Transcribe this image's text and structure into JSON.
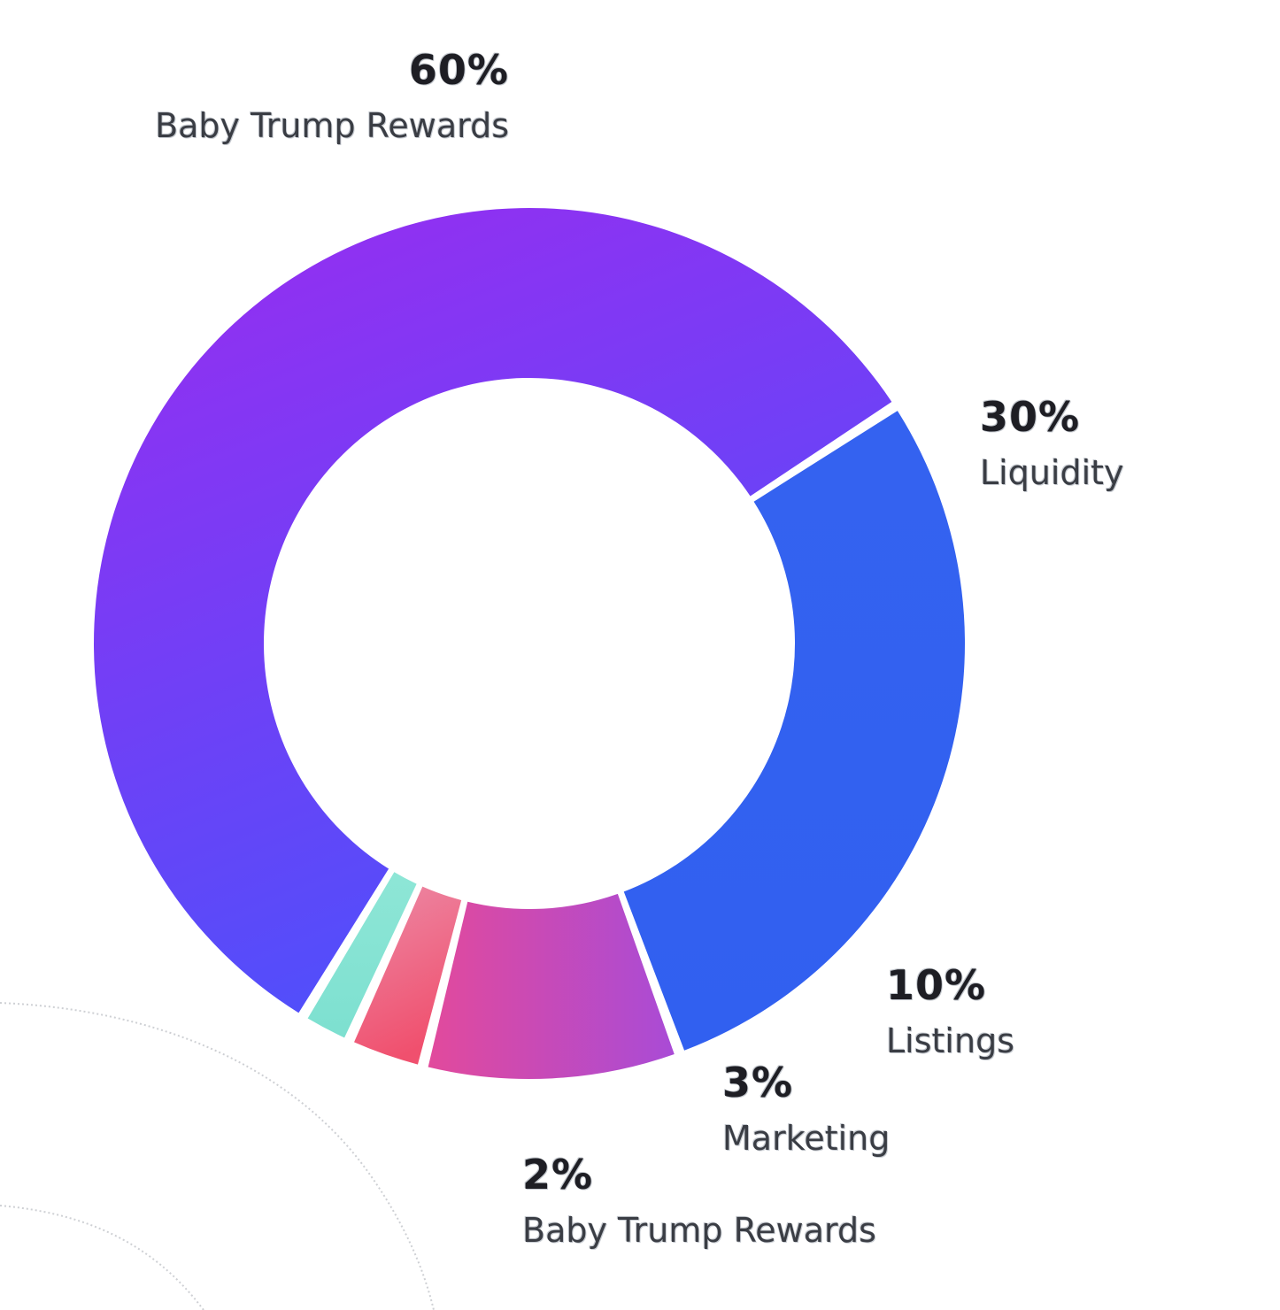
{
  "chart_data": {
    "type": "pie",
    "variant": "donut",
    "slices": [
      {
        "label": "Liquidity",
        "pct_label": "30%",
        "value": 30,
        "color_start": "#3462f0",
        "color_end": "#3160f0"
      },
      {
        "label": "Listings",
        "pct_label": "10%",
        "value": 10,
        "color_start": "#e24a9c",
        "color_end": "#a94bd6"
      },
      {
        "label": "Marketing",
        "pct_label": "3%",
        "value": 3,
        "color_start": "#ec8aa6",
        "color_end": "#f0506e"
      },
      {
        "label": "Baby Trump Rewards",
        "pct_label": "2%",
        "value": 2,
        "color_start": "#8ee6d6",
        "color_end": "#7de0d0"
      },
      {
        "label": "Baby Trump Rewards",
        "pct_label": "60%",
        "value": 60,
        "color_start": "#9a2cf0",
        "color_end": "#4e50fb"
      }
    ]
  }
}
